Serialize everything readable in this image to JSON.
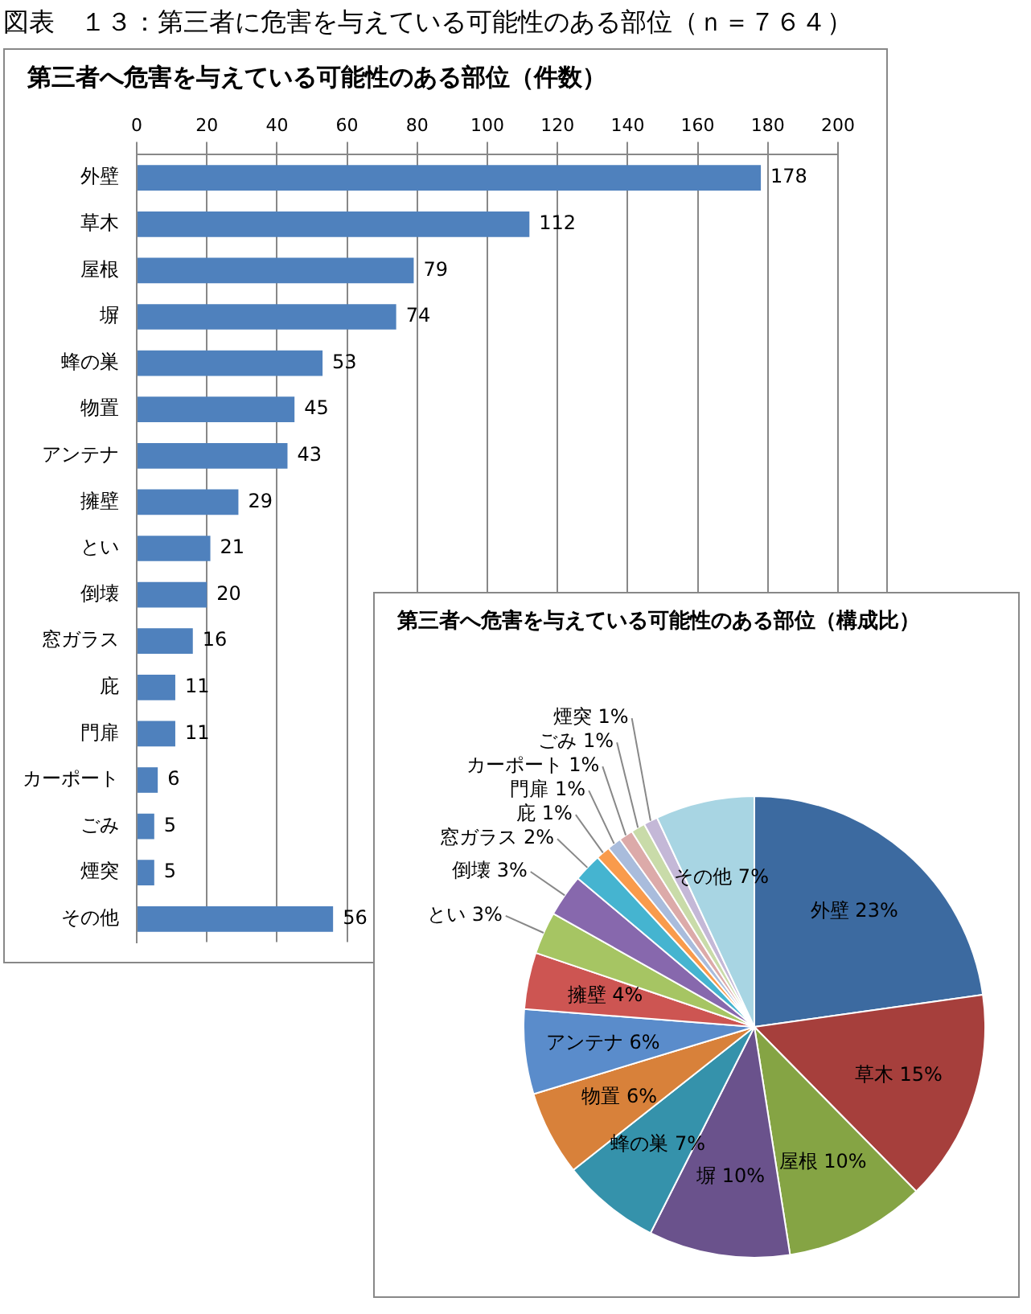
{
  "chart_data": [
    {
      "type": "bar",
      "title": "第三者へ危害を与えている可能性のある部位（件数）",
      "annotations": [
        "図表　１３：第三者に危害を与えている可能性のある部位（ｎ＝７６４）"
      ],
      "orientation": "horizontal",
      "categories": [
        "外壁",
        "草木",
        "屋根",
        "塀",
        "蜂の巣",
        "物置",
        "アンテナ",
        "擁壁",
        "とい",
        "倒壊",
        "窓ガラス",
        "庇",
        "門扉",
        "カーポート",
        "ごみ",
        "煙突",
        "その他"
      ],
      "values": [
        178,
        112,
        79,
        74,
        53,
        45,
        43,
        29,
        21,
        20,
        16,
        11,
        11,
        6,
        5,
        5,
        56
      ],
      "color": "#4f81bd",
      "xlim": [
        0,
        200
      ],
      "xticks": [
        0,
        20,
        40,
        60,
        80,
        100,
        120,
        140,
        160,
        180,
        200
      ],
      "grid": "x",
      "data_labels": true
    },
    {
      "type": "pie",
      "title": "第三者へ危害を与えている可能性のある部位（構成比）",
      "categories": [
        "外壁",
        "草木",
        "屋根",
        "塀",
        "蜂の巣",
        "物置",
        "アンテナ",
        "擁壁",
        "とい",
        "倒壊",
        "窓ガラス",
        "庇",
        "門扉",
        "カーポート",
        "ごみ",
        "煙突",
        "その他"
      ],
      "values": [
        23,
        15,
        10,
        10,
        7,
        6,
        6,
        4,
        3,
        3,
        2,
        1,
        1,
        1,
        1,
        1,
        7
      ],
      "value_labels": [
        "23%",
        "15%",
        "10%",
        "10%",
        "7%",
        "6%",
        "6%",
        "4%",
        "3%",
        "3%",
        "2%",
        "1%",
        "1%",
        "1%",
        "1%",
        "1%",
        "7%"
      ],
      "colors": [
        "#3c6aa0",
        "#a63f3c",
        "#85a444",
        "#6a528c",
        "#3592ab",
        "#d8813a",
        "#5a8ccb",
        "#cd5552",
        "#a6c563",
        "#8768ad",
        "#45b4d0",
        "#f99b4c",
        "#a9bcdc",
        "#dcaaa9",
        "#c9dba9",
        "#c4b8d7",
        "#a8d5e3"
      ]
    }
  ]
}
